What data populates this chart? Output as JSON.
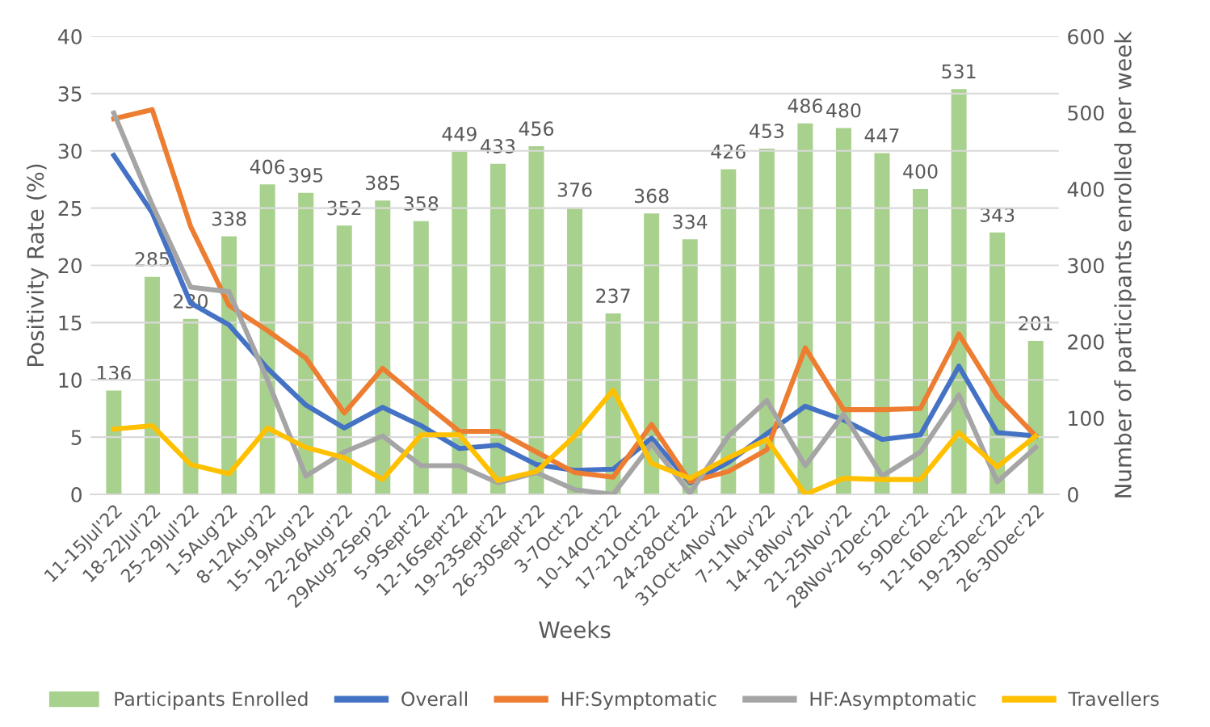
{
  "chart_data": {
    "type": "bar",
    "xlabel": "Weeks",
    "ylabel": "Positivity Rate (%)",
    "y2label": "Number of participants enrolled per week",
    "categories": [
      "11-15Jul'22",
      "18-22Jul'22",
      "25-29Jul'22",
      "1-5Aug'22",
      "8-12Aug'22",
      "15-19Aug'22",
      "22-26Aug'22",
      "29Aug-2Sep'22",
      "5-9Sept'22",
      "12-16Sept'22",
      "19-23Sept'22",
      "26-30Sept'22",
      "3-7Oct'22",
      "10-14Oct'22",
      "17-21Oct'22",
      "24-28Oct'22",
      "31Oct-4Nov'22",
      "7-11Nov'22",
      "14-18Nov'22",
      "21-25Nov'22",
      "28Nov-2Dec'22",
      "5-9Dec'22",
      "12-16Dec'22",
      "19-23Dec'22",
      "26-30Dec'22"
    ],
    "series": [
      {
        "name": "Participants Enrolled",
        "axis": "y2",
        "color": "#a9d18e",
        "values": [
          136,
          285,
          230,
          338,
          406,
          395,
          352,
          385,
          358,
          449,
          433,
          456,
          376,
          237,
          368,
          334,
          426,
          453,
          486,
          480,
          447,
          400,
          531,
          343,
          201
        ],
        "value_labels": [
          "136",
          "285",
          "230",
          "338",
          "406",
          "395",
          "352",
          "385",
          "358",
          "449",
          "433",
          "456",
          "376",
          "237",
          "368",
          "334",
          "426",
          "453",
          "486",
          "480",
          "447",
          "400",
          "531",
          "343",
          "201"
        ]
      },
      {
        "name": "Overall",
        "type": "line",
        "color": "#4472c4",
        "values": [
          29.6,
          24.6,
          16.7,
          14.8,
          11.0,
          7.8,
          5.8,
          7.6,
          6.0,
          4.0,
          4.3,
          2.6,
          2.1,
          2.2,
          4.9,
          1.0,
          2.8,
          5.3,
          7.7,
          6.5,
          4.8,
          5.2,
          11.2,
          5.4,
          5.1
        ]
      },
      {
        "name": "HF:Symptomatic",
        "type": "line",
        "color": "#ed7d31",
        "values": [
          32.8,
          33.6,
          23.4,
          16.5,
          14.3,
          11.9,
          7.1,
          11.0,
          8.2,
          5.5,
          5.5,
          3.7,
          1.9,
          1.5,
          6.1,
          1.1,
          2.0,
          3.9,
          12.8,
          7.4,
          7.4,
          7.5,
          14.0,
          8.6,
          5.1
        ]
      },
      {
        "name": "HF:Asymptomatic",
        "type": "line",
        "color": "#a5a5a5",
        "values": [
          33.3,
          25.3,
          18.1,
          17.7,
          10.0,
          1.6,
          3.7,
          5.1,
          2.5,
          2.5,
          1.0,
          1.9,
          0.4,
          0.0,
          4.4,
          0.1,
          5.1,
          8.2,
          2.5,
          7.0,
          1.6,
          3.7,
          8.7,
          1.1,
          4.1
        ]
      },
      {
        "name": "Travellers",
        "type": "line",
        "color": "#ffc000",
        "values": [
          5.7,
          6.0,
          2.6,
          1.8,
          5.8,
          4.1,
          3.2,
          1.3,
          5.2,
          5.2,
          1.2,
          2.0,
          5.1,
          9.1,
          2.7,
          1.4,
          3.2,
          4.8,
          0.0,
          1.4,
          1.3,
          1.3,
          5.4,
          2.4,
          5.1
        ]
      }
    ],
    "ylim": [
      0,
      40
    ],
    "yticks": [
      0,
      5,
      10,
      15,
      20,
      25,
      30,
      35,
      40
    ],
    "y2lim": [
      0,
      600
    ],
    "y2ticks": [
      0,
      100,
      200,
      300,
      400,
      500,
      600
    ],
    "grid": "y",
    "legend": "bottom"
  }
}
